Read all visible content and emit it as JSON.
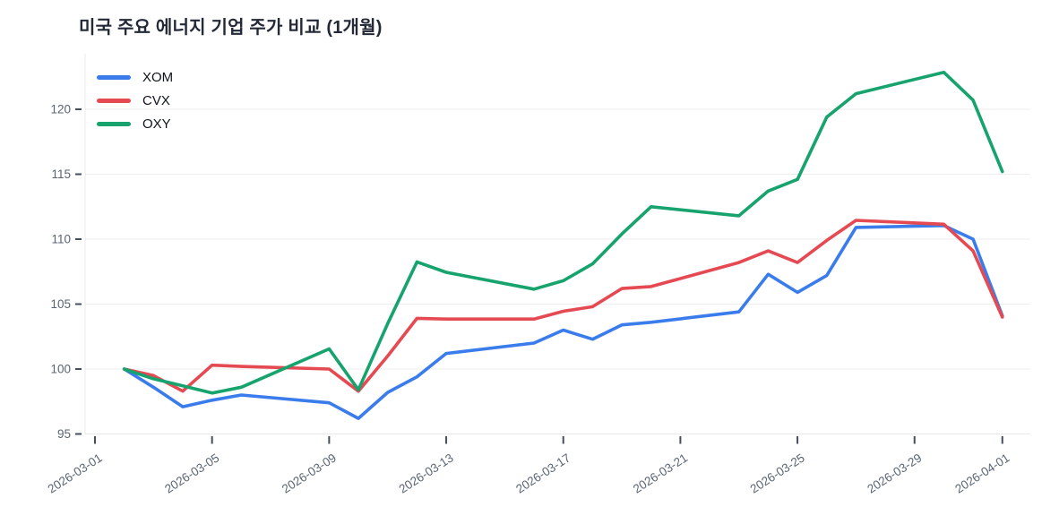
{
  "chart": {
    "title": "미국 주요 에너지 기업 주가 비교 (1개월)"
  },
  "chart_data": {
    "type": "line",
    "title": "미국 주요 에너지 기업 주가 비교 (1개월)",
    "xlabel": "",
    "ylabel": "",
    "grid": "horizontal",
    "legend_position": "top-left",
    "x": [
      "2026-03-02",
      "2026-03-03",
      "2026-03-04",
      "2026-03-05",
      "2026-03-06",
      "2026-03-09",
      "2026-03-10",
      "2026-03-11",
      "2026-03-12",
      "2026-03-13",
      "2026-03-16",
      "2026-03-17",
      "2026-03-18",
      "2026-03-19",
      "2026-03-20",
      "2026-03-23",
      "2026-03-24",
      "2026-03-25",
      "2026-03-26",
      "2026-03-27",
      "2026-03-30",
      "2026-03-31",
      "2026-04-01"
    ],
    "series": [
      {
        "name": "XOM",
        "color": "#3b7cec",
        "values": [
          100.0,
          98.6,
          97.1,
          97.6,
          98.0,
          97.4,
          96.2,
          98.2,
          99.4,
          101.2,
          102.0,
          103.0,
          102.3,
          103.4,
          103.6,
          104.4,
          107.3,
          105.9,
          107.2,
          110.9,
          111.05,
          110.0,
          104.1
        ]
      },
      {
        "name": "CVX",
        "color": "#e54a52",
        "values": [
          100.0,
          99.5,
          98.3,
          100.3,
          100.2,
          100.0,
          98.3,
          101.0,
          103.9,
          103.85,
          103.85,
          104.45,
          104.8,
          106.2,
          106.35,
          108.2,
          109.1,
          108.2,
          109.9,
          111.45,
          111.15,
          109.1,
          104.0
        ]
      },
      {
        "name": "OXY",
        "color": "#17a36e",
        "values": [
          100.0,
          99.25,
          98.7,
          98.15,
          98.6,
          101.55,
          98.4,
          103.5,
          108.25,
          107.45,
          106.15,
          106.8,
          108.1,
          110.4,
          112.5,
          111.8,
          113.7,
          114.6,
          119.4,
          121.2,
          122.85,
          120.7,
          115.2
        ]
      }
    ],
    "x_ticks": [
      "2026-03-01",
      "2026-03-05",
      "2026-03-09",
      "2026-03-13",
      "2026-03-17",
      "2026-03-21",
      "2026-03-25",
      "2026-03-29",
      "2026-04-01"
    ],
    "y_ticks": [
      95,
      100,
      105,
      110,
      115,
      120
    ],
    "ylim": [
      94.7,
      124.3
    ],
    "xlim": [
      "2026-03-01",
      "2026-04-02"
    ]
  }
}
